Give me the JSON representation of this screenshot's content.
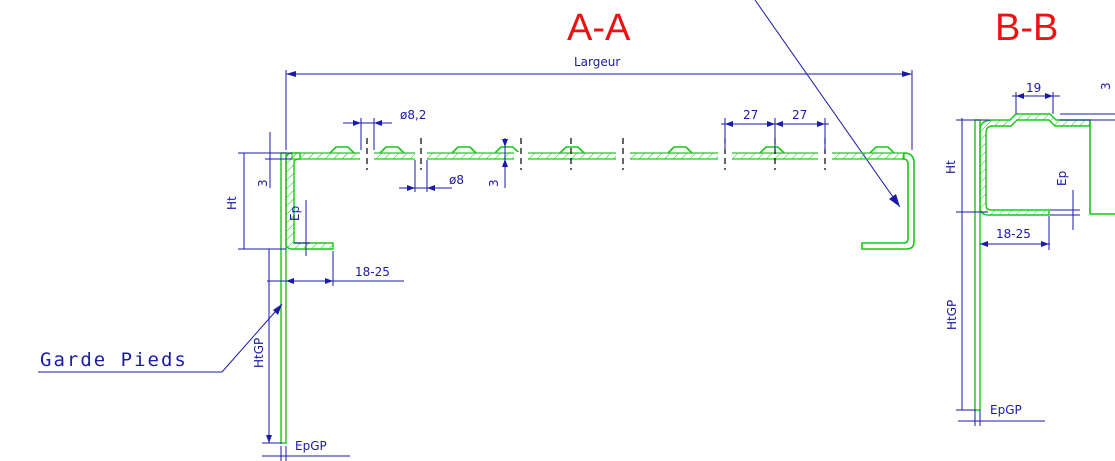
{
  "sections": {
    "aa": {
      "title": "A-A"
    },
    "bb": {
      "title": "B-B"
    }
  },
  "dimensions": {
    "largeur": "Largeur",
    "hole_82": "ø8,2",
    "hole_8": "ø8",
    "pitch_1": "27",
    "pitch_2": "27",
    "three_a": "3",
    "three_b": "3",
    "ht_a": "Ht",
    "ep_a": "Ep",
    "flange_a": "18-25",
    "htgp_a": "HtGP",
    "epgp_a": "EpGP",
    "nineteen": "19",
    "three_c": "3",
    "ht_b": "Ht",
    "ep_b": "Ep",
    "flange_b": "18-25",
    "htgp_b": "HtGP",
    "epgp_b": "EpGP"
  },
  "callout": {
    "label": "Garde Pieds"
  },
  "colors": {
    "section_title": "#ee1111",
    "profile": "#18c818",
    "dimension": "#1a1aa8",
    "centerline": "#000000"
  }
}
